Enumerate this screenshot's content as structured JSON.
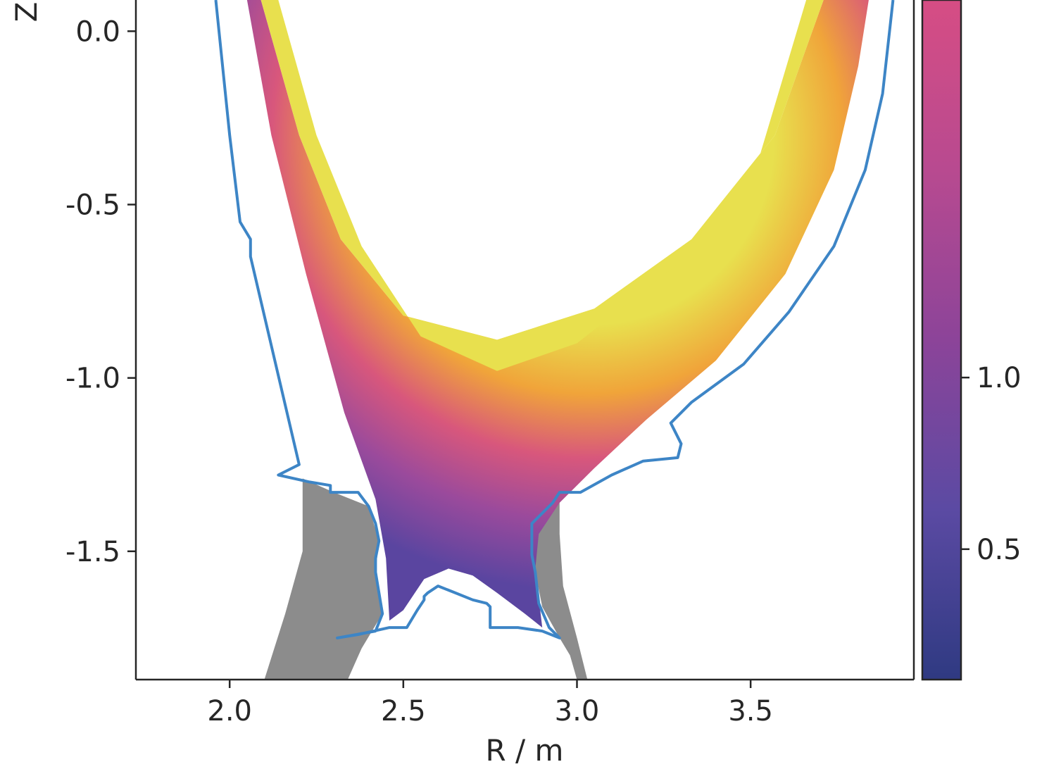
{
  "chart_data": {
    "type": "heatmap",
    "xlabel": "R / m",
    "ylabel": "Z",
    "xlim": [
      1.73,
      3.97
    ],
    "ylim": [
      -1.87,
      0.09
    ],
    "x_ticks": [
      "2.0",
      "2.5",
      "3.0",
      "3.5"
    ],
    "y_ticks": [
      "0.0",
      "-0.5",
      "-1.0",
      "-1.5"
    ],
    "x_tick_values": [
      2.0,
      2.5,
      3.0,
      3.5
    ],
    "y_tick_values": [
      0.0,
      -0.5,
      -1.0,
      -1.5
    ],
    "colorbar": {
      "colormap": "plasma",
      "range": [
        0.12,
        2.1
      ],
      "ticks": [
        "0.5",
        "1.0"
      ],
      "tick_values": [
        0.5,
        1.0
      ]
    },
    "colors": {
      "wall_outline": "#3d85c6",
      "shadow_region": "#8c8c8c",
      "colormap_low": "#3b3c8a",
      "colormap_mid": "#d44d86",
      "colormap_high": "#e8e04e"
    },
    "series": [
      {
        "kind": "wall-outline",
        "points": [
          [
            1.96,
            0.09
          ],
          [
            2.0,
            -0.3
          ],
          [
            2.03,
            -0.55
          ],
          [
            2.06,
            -0.6
          ],
          [
            2.06,
            -0.65
          ],
          [
            2.2,
            -1.25
          ],
          [
            2.14,
            -1.28
          ],
          [
            2.23,
            -1.3
          ],
          [
            2.29,
            -1.31
          ],
          [
            2.29,
            -1.33
          ],
          [
            2.37,
            -1.33
          ],
          [
            2.4,
            -1.37
          ],
          [
            2.42,
            -1.42
          ],
          [
            2.43,
            -1.47
          ],
          [
            2.42,
            -1.52
          ],
          [
            2.42,
            -1.56
          ],
          [
            2.43,
            -1.62
          ],
          [
            2.44,
            -1.68
          ],
          [
            2.42,
            -1.73
          ],
          [
            2.31,
            -1.75
          ],
          [
            2.37,
            -1.74
          ],
          [
            2.46,
            -1.72
          ],
          [
            2.51,
            -1.72
          ],
          [
            2.54,
            -1.67
          ],
          [
            2.56,
            -1.64
          ],
          [
            2.56,
            -1.63
          ],
          [
            2.57,
            -1.62
          ],
          [
            2.6,
            -1.6
          ],
          [
            2.65,
            -1.62
          ],
          [
            2.7,
            -1.64
          ],
          [
            2.74,
            -1.65
          ],
          [
            2.75,
            -1.66
          ],
          [
            2.75,
            -1.72
          ],
          [
            2.83,
            -1.72
          ],
          [
            2.9,
            -1.73
          ],
          [
            2.95,
            -1.75
          ],
          [
            2.92,
            -1.72
          ],
          [
            2.89,
            -1.65
          ],
          [
            2.88,
            -1.56
          ],
          [
            2.87,
            -1.51
          ],
          [
            2.87,
            -1.42
          ],
          [
            2.9,
            -1.39
          ],
          [
            2.93,
            -1.36
          ],
          [
            2.95,
            -1.33
          ],
          [
            3.01,
            -1.33
          ],
          [
            3.1,
            -1.28
          ],
          [
            3.19,
            -1.24
          ],
          [
            3.29,
            -1.23
          ],
          [
            3.3,
            -1.19
          ],
          [
            3.27,
            -1.13
          ],
          [
            3.33,
            -1.07
          ],
          [
            3.48,
            -0.96
          ],
          [
            3.61,
            -0.81
          ],
          [
            3.74,
            -0.62
          ],
          [
            3.83,
            -0.4
          ],
          [
            3.88,
            -0.18
          ],
          [
            3.91,
            0.09
          ]
        ]
      },
      {
        "kind": "core-boundary",
        "points": [
          [
            2.09,
            0.09
          ],
          [
            2.2,
            -0.3
          ],
          [
            2.32,
            -0.6
          ],
          [
            2.5,
            -0.82
          ],
          [
            2.77,
            -0.89
          ],
          [
            3.05,
            -0.8
          ],
          [
            3.33,
            -0.6
          ],
          [
            3.57,
            -0.3
          ],
          [
            3.71,
            0.09
          ]
        ]
      }
    ]
  }
}
